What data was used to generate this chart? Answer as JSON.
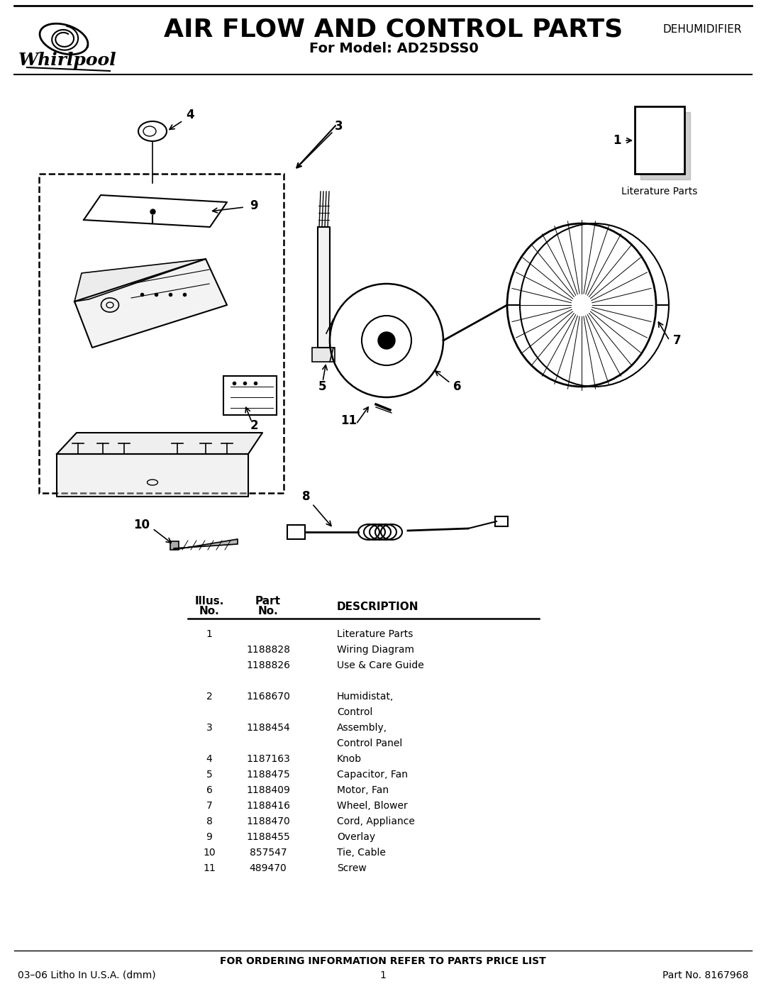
{
  "title": "AIR FLOW AND CONTROL PARTS",
  "subtitle": "For Model: AD25DSS0",
  "category": "DEHUMIDIFIER",
  "bg_color": "#ffffff",
  "parts": [
    {
      "illus": "1",
      "part": "",
      "desc": "Literature Parts",
      "indent": false
    },
    {
      "illus": "",
      "part": "1188828",
      "desc": "Wiring Diagram",
      "indent": true
    },
    {
      "illus": "",
      "part": "1188826",
      "desc": "Use & Care Guide",
      "indent": true
    },
    {
      "illus": "",
      "part": "",
      "desc": "",
      "indent": false
    },
    {
      "illus": "2",
      "part": "1168670",
      "desc": "Humidistat,",
      "indent": false
    },
    {
      "illus": "",
      "part": "",
      "desc": "Control",
      "indent": true
    },
    {
      "illus": "3",
      "part": "1188454",
      "desc": "Assembly,",
      "indent": false
    },
    {
      "illus": "",
      "part": "",
      "desc": "Control Panel",
      "indent": true
    },
    {
      "illus": "4",
      "part": "1187163",
      "desc": "Knob",
      "indent": false
    },
    {
      "illus": "5",
      "part": "1188475",
      "desc": "Capacitor, Fan",
      "indent": false
    },
    {
      "illus": "6",
      "part": "1188409",
      "desc": "Motor, Fan",
      "indent": false
    },
    {
      "illus": "7",
      "part": "1188416",
      "desc": "Wheel, Blower",
      "indent": false
    },
    {
      "illus": "8",
      "part": "1188470",
      "desc": "Cord, Appliance",
      "indent": false
    },
    {
      "illus": "9",
      "part": "1188455",
      "desc": "Overlay",
      "indent": false
    },
    {
      "illus": "10",
      "part": "857547",
      "desc": "Tie, Cable",
      "indent": false
    },
    {
      "illus": "11",
      "part": "489470",
      "desc": "Screw",
      "indent": false
    }
  ],
  "footer_center": "FOR ORDERING INFORMATION REFER TO PARTS PRICE LIST",
  "footer_left": "03–06 Litho In U.S.A. (dmm)",
  "footer_mid": "1",
  "footer_right": "Part No. 8167968"
}
